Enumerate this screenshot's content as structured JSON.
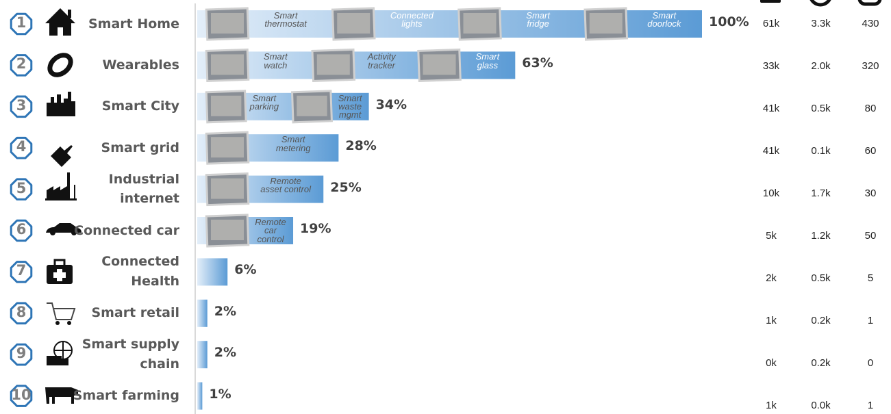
{
  "chart_data": {
    "type": "bar",
    "ranks": [
      1,
      2,
      3,
      4,
      5,
      6,
      7,
      8,
      9,
      10
    ],
    "categories": [
      "Smart Home",
      "Wearables",
      "Smart City",
      "Smart grid",
      "Industrial\ninternet",
      "Connected car",
      "Connected\nHealth",
      "Smart retail",
      "Smart supply\nchain",
      "Smart farming"
    ],
    "values": [
      100,
      63,
      34,
      28,
      25,
      19,
      6,
      2,
      2,
      1
    ],
    "value_labels": [
      "100%",
      "63%",
      "34%",
      "28%",
      "25%",
      "19%",
      "6%",
      "2%",
      "2%",
      "1%"
    ],
    "color": "#5b9bd5",
    "bar_items": [
      [
        "Smart\nthermostat",
        "Connected\nlights",
        "Smart\nfridge",
        "Smart\ndoorlock"
      ],
      [
        "Smart\nwatch",
        "Activity\ntracker",
        "Smart\nglass"
      ],
      [
        "Smart\nparking",
        "Smart\nwaste\nmgmt"
      ],
      [
        "Smart\nmetering"
      ],
      [
        "Remote\nasset control"
      ],
      [
        "Remote\ncar\ncontrol"
      ],
      [],
      [],
      [],
      []
    ],
    "stats": [
      [
        "61k",
        "3.3k",
        "430"
      ],
      [
        "33k",
        "2.0k",
        "320"
      ],
      [
        "41k",
        "0.5k",
        "80"
      ],
      [
        "41k",
        "0.1k",
        "60"
      ],
      [
        "10k",
        "1.7k",
        "30"
      ],
      [
        "5k",
        "1.2k",
        "50"
      ],
      [
        "2k",
        "0.5k",
        "5"
      ],
      [
        "1k",
        "0.2k",
        "1"
      ],
      [
        "0k",
        "0.2k",
        "0"
      ],
      [
        "1k",
        "0.0k",
        "1"
      ]
    ]
  }
}
